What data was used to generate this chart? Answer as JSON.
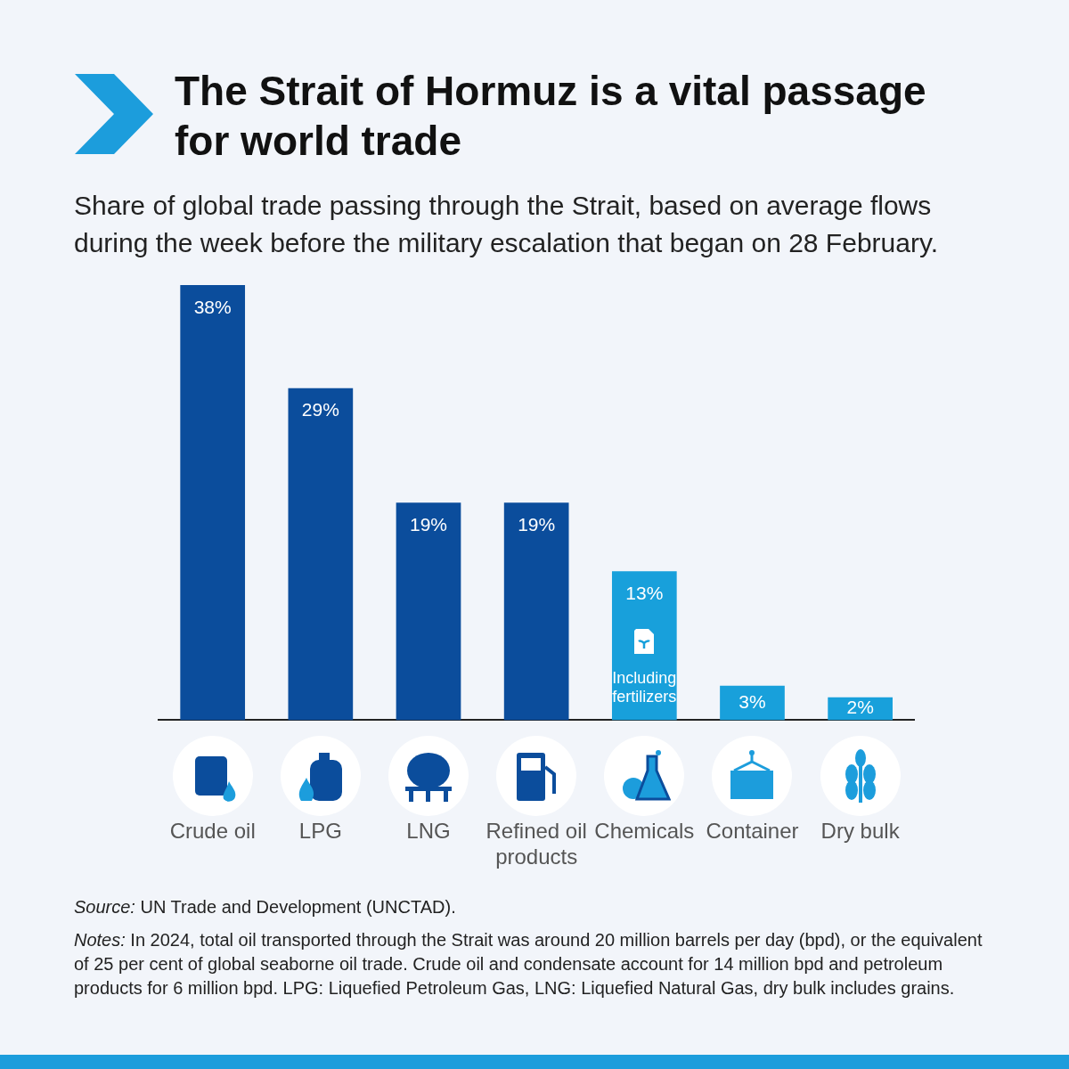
{
  "chart_data": {
    "type": "bar",
    "title": "The Strait of Hormuz is a vital passage for world trade",
    "subtitle": "Share of global trade passing through the Strait, based on average flows during the week before the military escalation that began on 28 February.",
    "categories": [
      "Crude oil",
      "LPG",
      "LNG",
      "Refined oil products",
      "Chemicals",
      "Container",
      "Dry bulk"
    ],
    "values": [
      38,
      29,
      19,
      19,
      13,
      3,
      2
    ],
    "colors": [
      "#0b4d9c",
      "#0b4d9c",
      "#0b4d9c",
      "#0b4d9c",
      "#18a0db",
      "#18a0db",
      "#18a0db"
    ],
    "value_labels": [
      "38%",
      "29%",
      "19%",
      "19%",
      "13%",
      "3%",
      "2%"
    ],
    "grid": false,
    "legend": false,
    "tick_labels": "x",
    "annotations": [
      "Including fertilizers",
      "Source: UN Trade and Development (UNCTAD).",
      "Notes: In 2024, total oil transported through the Strait was around 20 million barrels per day (bpd), or the equivalent of 25 per cent of global seaborne oil trade. Crude oil and condensate account for 14 million bpd and petroleum products for 6 million bpd. LPG: Liquefied Petroleum Gas, LNG: Liquefied Natural Gas, dry bulk includes grains."
    ]
  }
}
